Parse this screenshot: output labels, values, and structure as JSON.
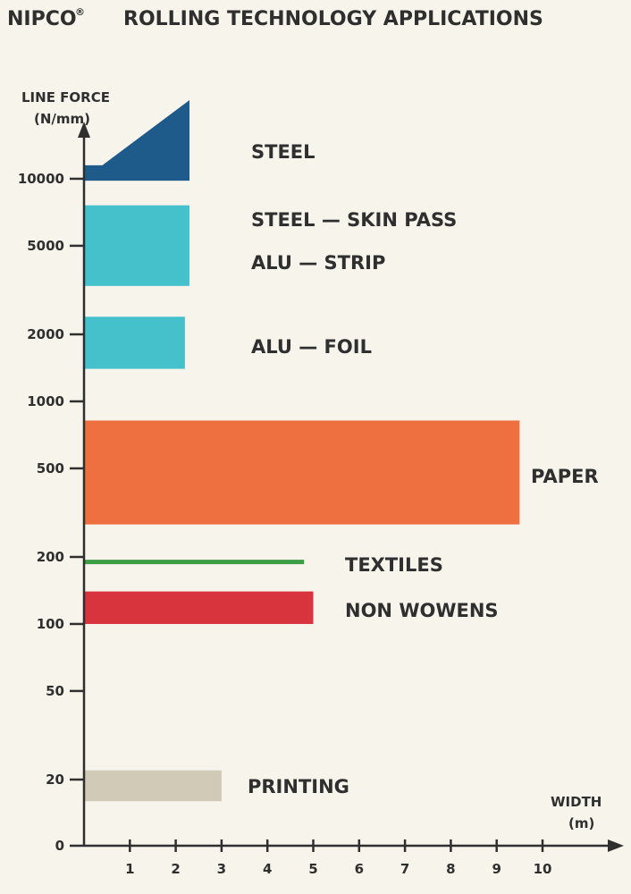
{
  "header": {
    "brand": "NIPCO",
    "registered": "®",
    "title": "ROLLING TECHNOLOGY APPLICATIONS"
  },
  "chart_data": {
    "type": "bar",
    "y_axis": {
      "label_line1": "LINE FORCE",
      "label_line2": "(N/mm)",
      "scale": "log",
      "ticks": [
        {
          "value": 0,
          "label": "0"
        },
        {
          "value": 20,
          "label": "20"
        },
        {
          "value": 50,
          "label": "50"
        },
        {
          "value": 100,
          "label": "100"
        },
        {
          "value": 200,
          "label": "200"
        },
        {
          "value": 500,
          "label": "500"
        },
        {
          "value": 1000,
          "label": "1000"
        },
        {
          "value": 2000,
          "label": "2000"
        },
        {
          "value": 5000,
          "label": "5000"
        },
        {
          "value": 10000,
          "label": "10000"
        }
      ]
    },
    "x_axis": {
      "label_line1": "WIDTH",
      "label_line2": "(m)",
      "ticks": [
        {
          "value": 1,
          "label": "1"
        },
        {
          "value": 2,
          "label": "2"
        },
        {
          "value": 3,
          "label": "3"
        },
        {
          "value": 4,
          "label": "4"
        },
        {
          "value": 5,
          "label": "5"
        },
        {
          "value": 6,
          "label": "6"
        },
        {
          "value": 7,
          "label": "7"
        },
        {
          "value": 8,
          "label": "8"
        },
        {
          "value": 9,
          "label": "9"
        },
        {
          "value": 10,
          "label": "10"
        }
      ],
      "xlim": [
        0,
        11.5
      ]
    },
    "series": [
      {
        "label": "STEEL",
        "color": "#1e5a8a",
        "shape": "ramp",
        "width_max": 2.3,
        "force_min": 9800,
        "ramp_start_width": 0.4,
        "ramp_low_force": 11500,
        "force_max": 25000
      },
      {
        "label": "STEEL — SKIN PASS",
        "color": "#45c1cc",
        "width_max": 2.3,
        "force_min": 3300,
        "force_max": 7600
      },
      {
        "label": "ALU — STRIP",
        "color": "#45c1cc",
        "width_max": 2.3,
        "force_min": 3300,
        "force_max": 7600
      },
      {
        "label": "ALU — FOIL",
        "color": "#45c1cc",
        "width_max": 2.2,
        "force_min": 1400,
        "force_max": 2400
      },
      {
        "label": "PAPER",
        "color": "#ee7040",
        "width_max": 9.5,
        "force_min": 280,
        "force_max": 820
      },
      {
        "label": "TEXTILES",
        "color": "#3c9d46",
        "shape": "line",
        "width_max": 4.8,
        "force_min": 185,
        "force_max": 195
      },
      {
        "label": "NON WOWENS",
        "color": "#d8343e",
        "width_max": 5.0,
        "force_min": 100,
        "force_max": 140
      },
      {
        "label": "PRINTING",
        "color": "#d1cab6",
        "width_max": 3.0,
        "force_min": 16,
        "force_max": 22
      }
    ]
  }
}
